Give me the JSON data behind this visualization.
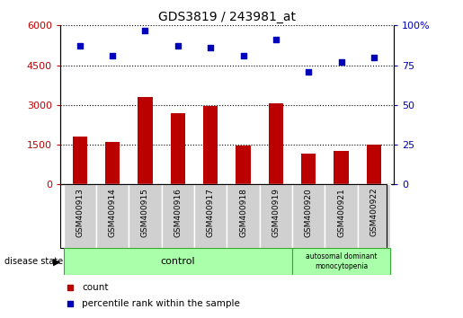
{
  "title": "GDS3819 / 243981_at",
  "samples": [
    "GSM400913",
    "GSM400914",
    "GSM400915",
    "GSM400916",
    "GSM400917",
    "GSM400918",
    "GSM400919",
    "GSM400920",
    "GSM400921",
    "GSM400922"
  ],
  "counts": [
    1800,
    1600,
    3300,
    2700,
    2970,
    1470,
    3060,
    1180,
    1250,
    1500
  ],
  "percentile_ranks": [
    87,
    81,
    97,
    87,
    86,
    81,
    91,
    71,
    77,
    80
  ],
  "left_ylim": [
    0,
    6000
  ],
  "right_ylim": [
    0,
    100
  ],
  "left_yticks": [
    0,
    1500,
    3000,
    4500,
    6000
  ],
  "right_yticks": [
    0,
    25,
    50,
    75,
    100
  ],
  "bar_color": "#bb0000",
  "dot_color": "#0000bb",
  "grid_color": "#000000",
  "control_n": 7,
  "disease_n": 3,
  "legend_items": [
    "count",
    "percentile rank within the sample"
  ],
  "disease_labels": [
    "control",
    "autosomal dominant\nmonocytopenia"
  ]
}
